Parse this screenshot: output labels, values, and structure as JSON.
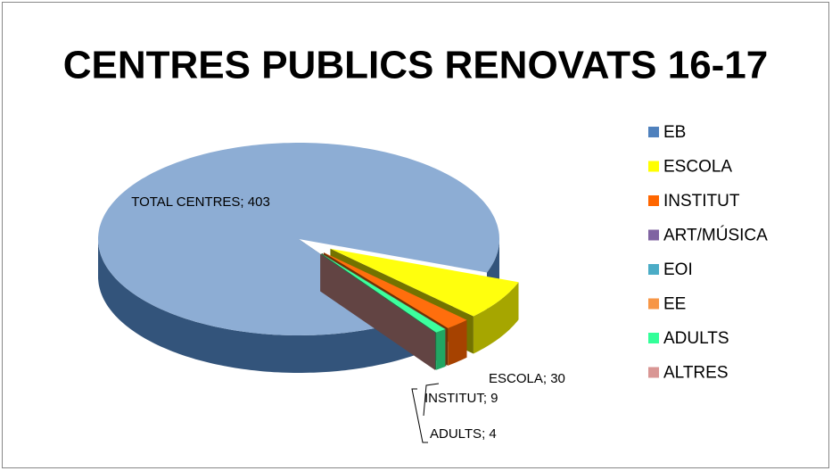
{
  "chart_data": {
    "type": "pie",
    "title": "CENTRES PUBLICS RENOVATS 16-17",
    "categories": [
      "EB",
      "ESCOLA",
      "INSTITUT",
      "ART/MÚSICA",
      "EOI",
      "EE",
      "ADULTS",
      "ALTRES"
    ],
    "values": [
      403,
      30,
      9,
      0,
      0,
      0,
      4,
      0
    ],
    "value_labels": [
      "TOTAL CENTRES; 403",
      "ESCOLA; 30",
      "INSTITUT; 9",
      null,
      null,
      null,
      "ADULTS; 4",
      null
    ],
    "colors": [
      "#4f81bd",
      "#ffff00",
      "#ff6600",
      "#8064a2",
      "#4bacc6",
      "#f79646",
      "#33ff99",
      "#d99694"
    ],
    "legend": "right"
  }
}
